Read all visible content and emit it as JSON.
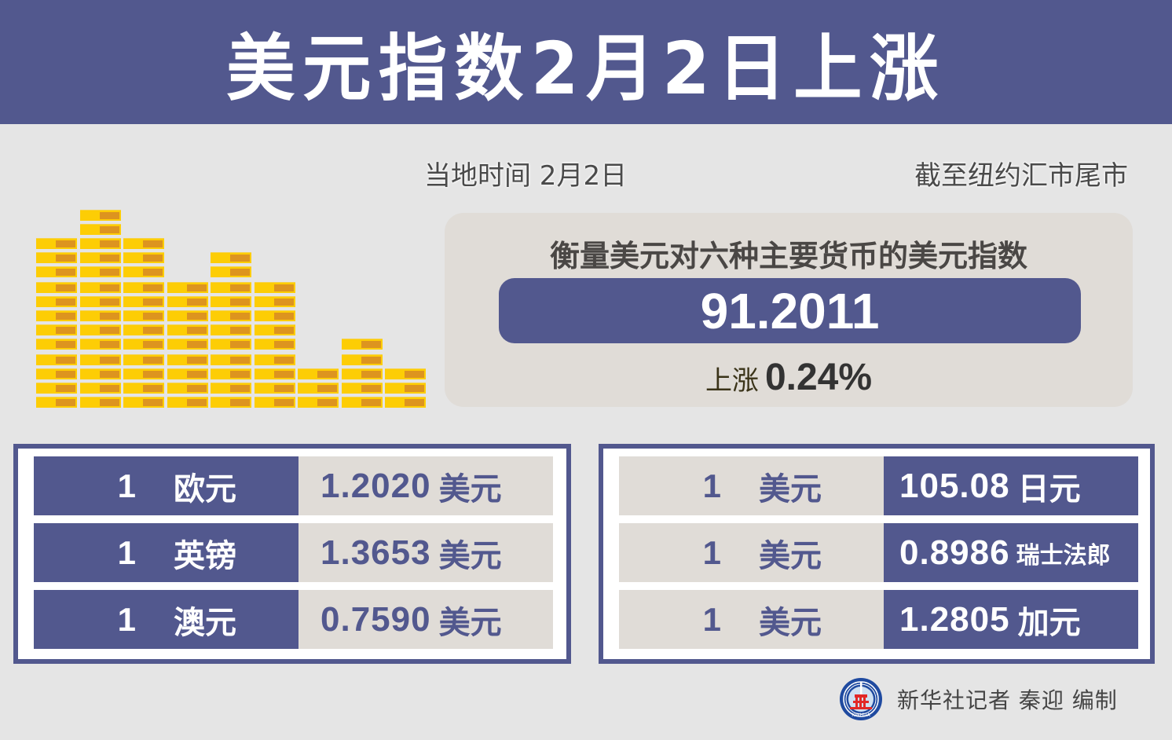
{
  "header": {
    "title": "美元指数2月2日上涨"
  },
  "meta": {
    "local_time": "当地时间  2月2日",
    "cutoff": "截至纽约汇市尾市"
  },
  "index": {
    "heading": "衡量美元对六种主要货币的美元指数",
    "value": "91.2011",
    "change_label": "上涨",
    "change_value": "0.24%"
  },
  "colors": {
    "brand_navy": "#52588e",
    "panel_beige": "#e0dcd7",
    "background": "#e5e5e5",
    "gold_bar": "#fdcd05",
    "gold_bar_shade": "#dd941f"
  },
  "decoration": {
    "gold_bar_stack_counts": [
      12,
      14,
      12,
      9,
      11,
      9,
      3,
      5,
      3
    ]
  },
  "left_table": {
    "rows": [
      {
        "amount": "1",
        "currency": "欧元",
        "rate": "1.2020",
        "unit": "美元"
      },
      {
        "amount": "1",
        "currency": "英镑",
        "rate": "1.3653",
        "unit": "美元"
      },
      {
        "amount": "1",
        "currency": "澳元",
        "rate": "0.7590",
        "unit": "美元"
      }
    ]
  },
  "right_table": {
    "rows": [
      {
        "amount": "1",
        "currency": "美元",
        "rate": "105.08",
        "unit": "日元"
      },
      {
        "amount": "1",
        "currency": "美元",
        "rate": "0.8986",
        "unit": "瑞士法郎"
      },
      {
        "amount": "1",
        "currency": "美元",
        "rate": "1.2805",
        "unit": "加元"
      }
    ]
  },
  "footer": {
    "logo_icon": "xinhua-logo-icon",
    "logo_text": "XINHUA",
    "credit": "新华社记者  秦迎  编制"
  }
}
